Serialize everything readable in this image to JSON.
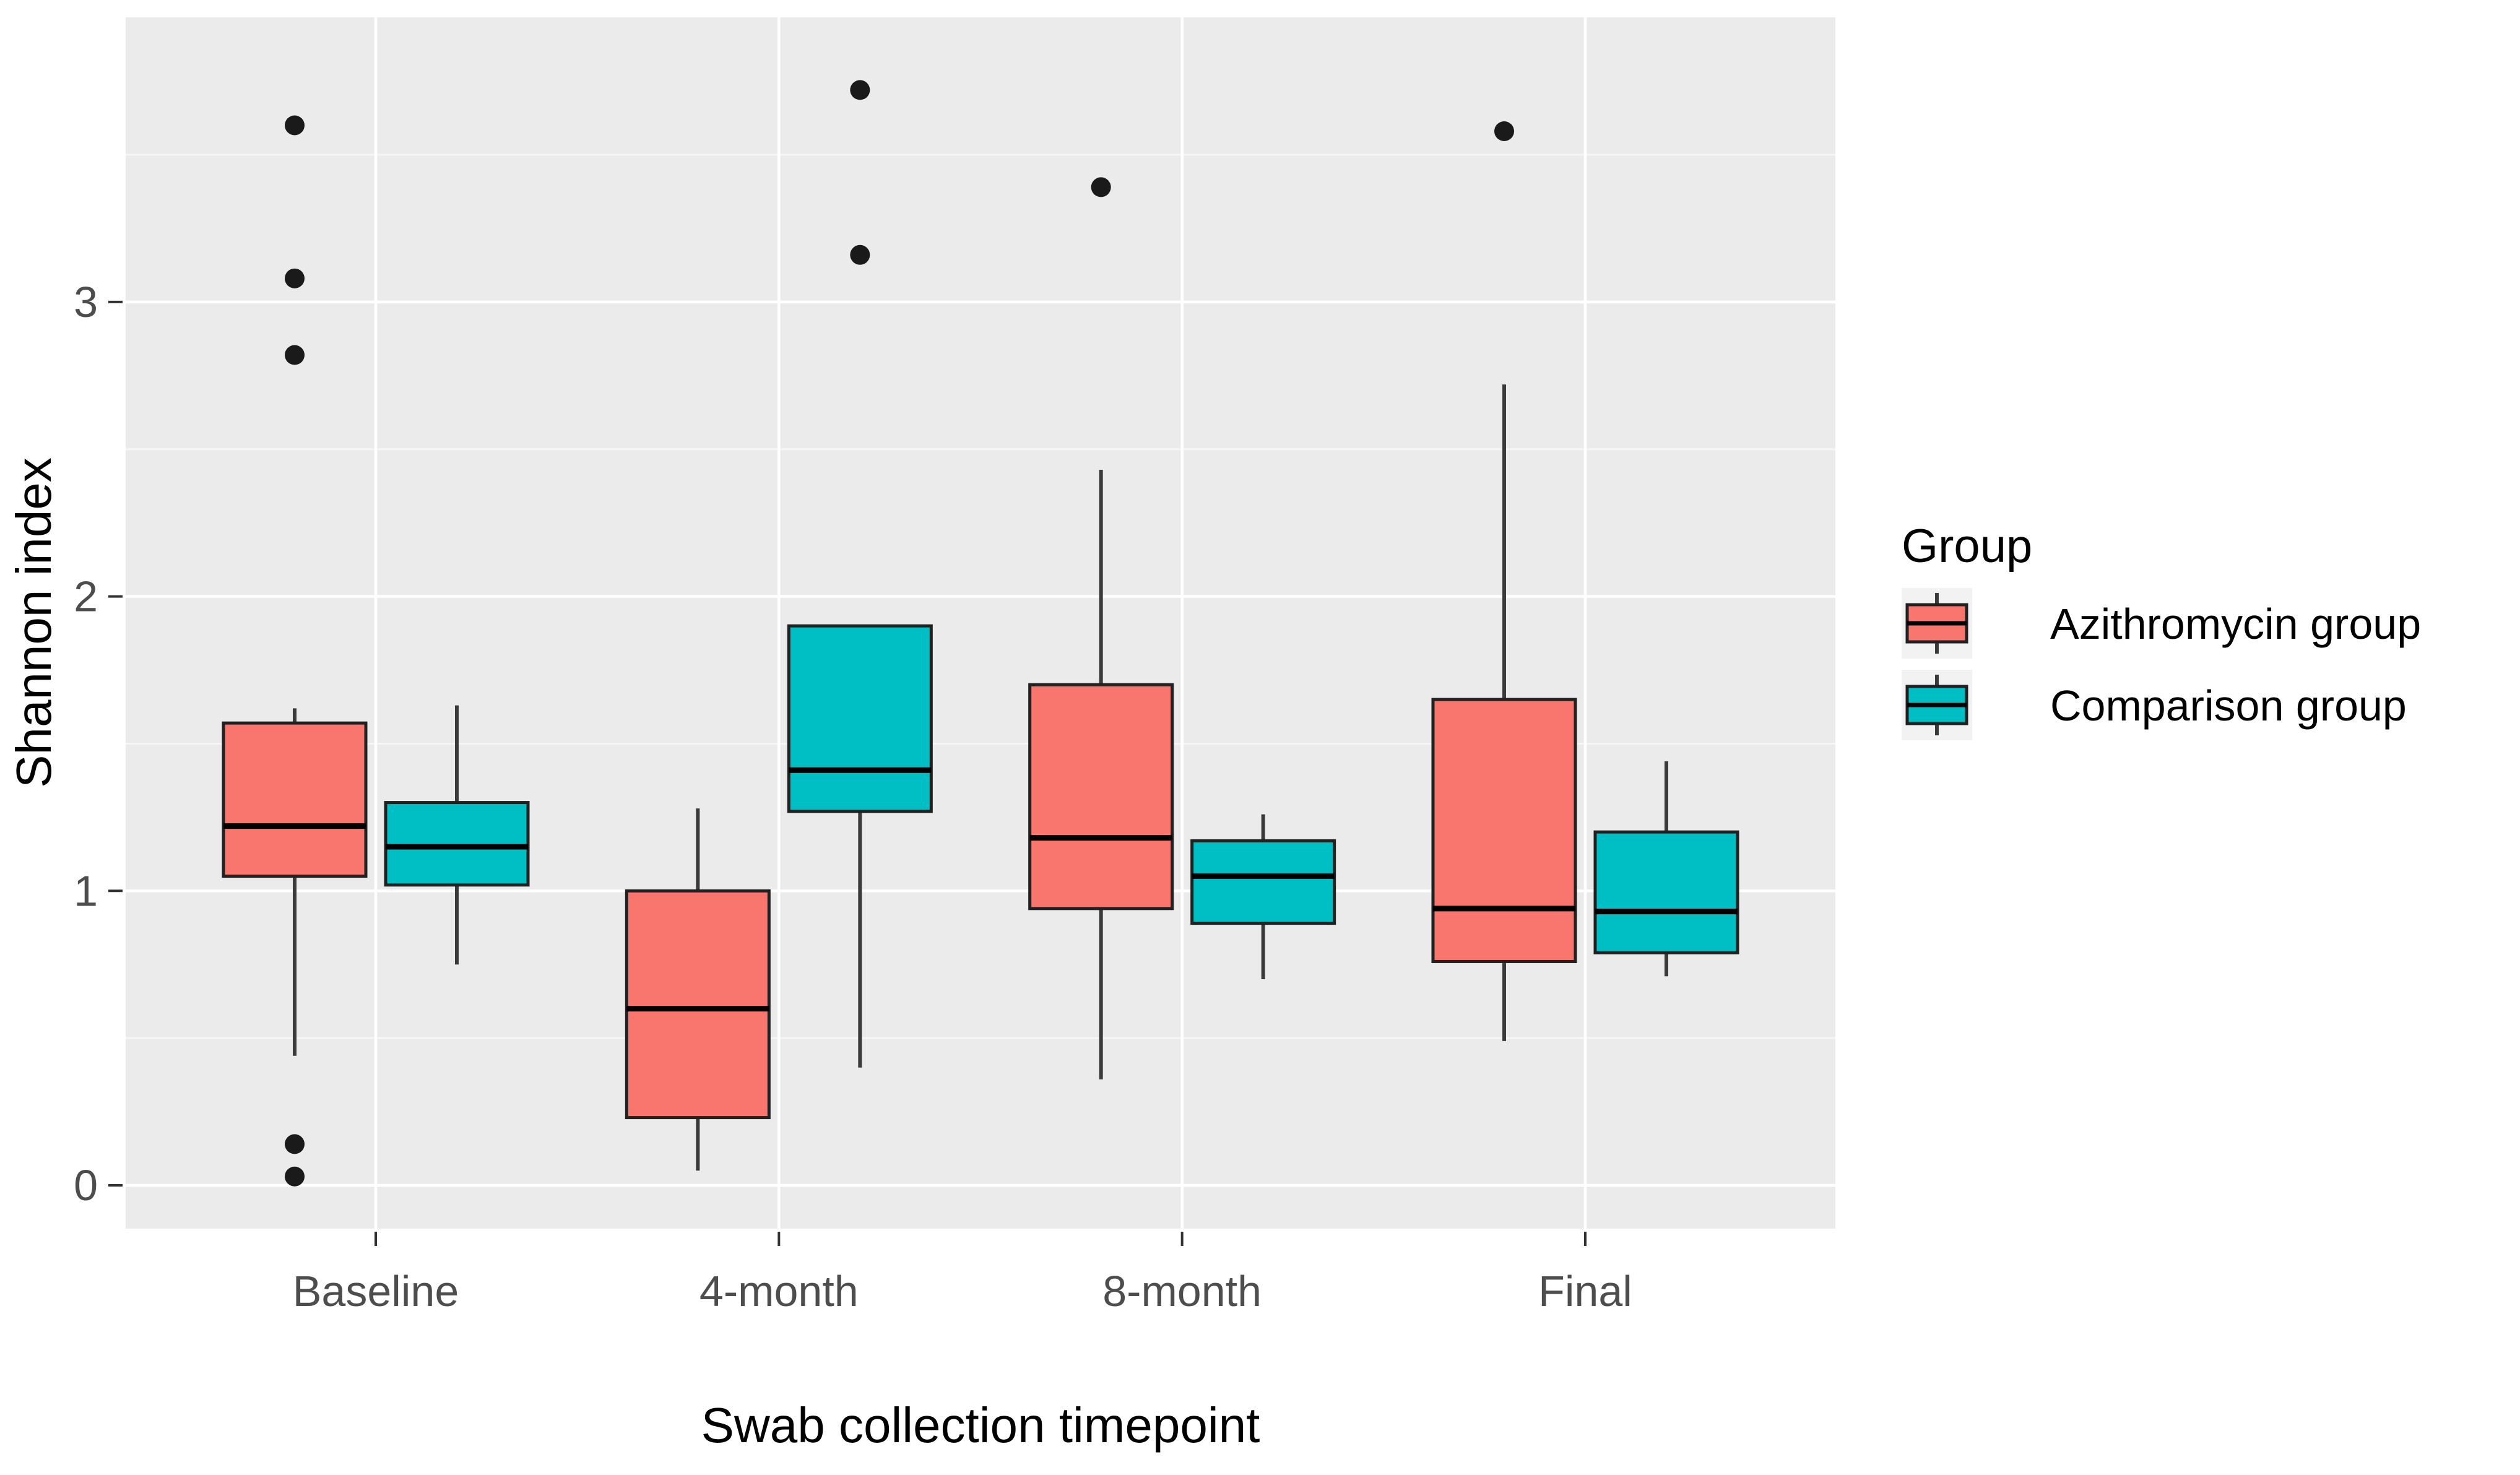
{
  "chart_data": {
    "type": "boxplot",
    "title": "",
    "xlabel": "Swab collection timepoint",
    "ylabel": "Shannon index",
    "categories": [
      "Baseline",
      "4-month",
      "8-month",
      "Final"
    ],
    "y_ticks": [
      0,
      1,
      2,
      3
    ],
    "y_minor_ticks": [
      0.5,
      1.5,
      2.5,
      3.5
    ],
    "ylim": [
      -0.15,
      3.97
    ],
    "grid": "on",
    "legend": {
      "title": "Group",
      "position": "right",
      "entries": [
        {
          "label": "Azithromycin group",
          "color": "#F8766D"
        },
        {
          "label": "Comparison group",
          "color": "#00BFC4"
        }
      ]
    },
    "series": [
      {
        "name": "Azithromycin group",
        "color": "#F8766D",
        "boxes": [
          {
            "category": "Baseline",
            "whisker_low": 0.44,
            "q1": 1.05,
            "median": 1.22,
            "q3": 1.57,
            "whisker_high": 1.62,
            "outliers": [
              3.6,
              3.08,
              2.82,
              0.14,
              0.03
            ]
          },
          {
            "category": "4-month",
            "whisker_low": 0.05,
            "q1": 0.23,
            "median": 0.6,
            "q3": 1.0,
            "whisker_high": 1.28,
            "outliers": []
          },
          {
            "category": "8-month",
            "whisker_low": 0.36,
            "q1": 0.94,
            "median": 1.18,
            "q3": 1.7,
            "whisker_high": 2.43,
            "outliers": [
              3.39
            ]
          },
          {
            "category": "Final",
            "whisker_low": 0.49,
            "q1": 0.76,
            "median": 0.94,
            "q3": 1.65,
            "whisker_high": 2.72,
            "outliers": [
              3.58
            ]
          }
        ]
      },
      {
        "name": "Comparison group",
        "color": "#00BFC4",
        "boxes": [
          {
            "category": "Baseline",
            "whisker_low": 0.75,
            "q1": 1.02,
            "median": 1.15,
            "q3": 1.3,
            "whisker_high": 1.63,
            "outliers": []
          },
          {
            "category": "4-month",
            "whisker_low": 0.4,
            "q1": 1.27,
            "median": 1.41,
            "q3": 1.9,
            "whisker_high": 1.9,
            "outliers": [
              3.72,
              3.16
            ]
          },
          {
            "category": "8-month",
            "whisker_low": 0.7,
            "q1": 0.89,
            "median": 1.05,
            "q3": 1.17,
            "whisker_high": 1.26,
            "outliers": []
          },
          {
            "category": "Final",
            "whisker_low": 0.71,
            "q1": 0.79,
            "median": 0.93,
            "q3": 1.2,
            "whisker_high": 1.44,
            "outliers": []
          }
        ]
      }
    ],
    "style": {
      "panel_bg": "#EBEBEB",
      "grid_major": "#FFFFFF",
      "grid_minor": "#F6F6F6",
      "box_border": "#212121",
      "whisker_color": "#3A3A3A",
      "median_color": "#000000",
      "outlier_color": "#1A1A1A",
      "tick_color": "#333333",
      "tick_label_color": "#4D4D4D",
      "legend_key_bg": "#F2F2F2"
    }
  }
}
